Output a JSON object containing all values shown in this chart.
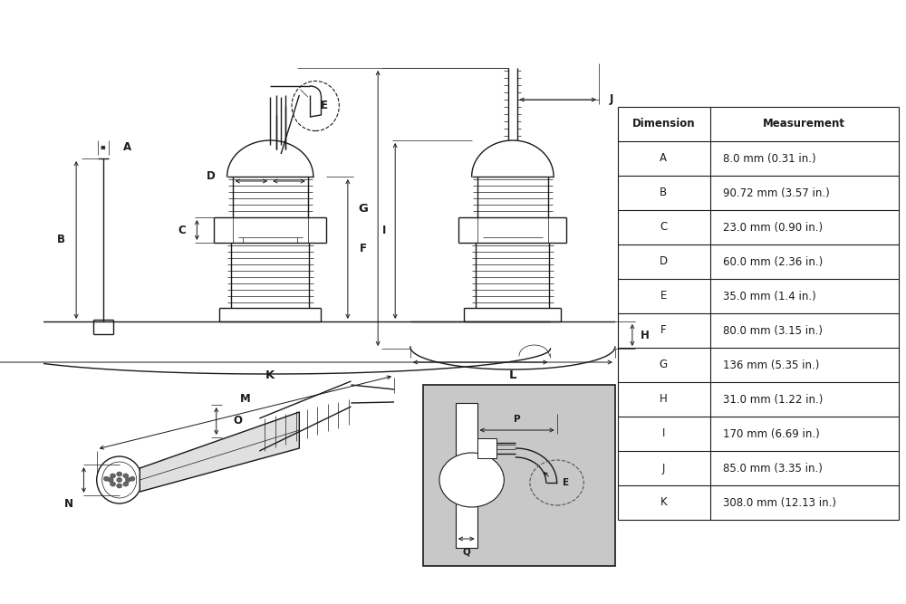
{
  "table_dimensions": [
    [
      "A",
      "8.0 mm (0.31 in.)"
    ],
    [
      "B",
      "90.72 mm (3.57 in.)"
    ],
    [
      "C",
      "23.0 mm (0.90 in.)"
    ],
    [
      "D",
      "60.0 mm (2.36 in.)"
    ],
    [
      "E",
      "35.0 mm (1.4 in.)"
    ],
    [
      "F",
      "80.0 mm (3.15 in.)"
    ],
    [
      "G",
      "136 mm (5.35 in.)"
    ],
    [
      "H",
      "31.0 mm (1.22 in.)"
    ],
    [
      "I",
      "170 mm (6.69 in.)"
    ],
    [
      "J",
      "85.0 mm (3.35 in.)"
    ],
    [
      "K",
      "308.0 mm (12.13 in.)"
    ]
  ],
  "bg_color": "#ffffff",
  "line_color": "#1a1a1a",
  "gray_bg": "#c8c8c8",
  "label_fontsize": 8.5,
  "table_fontsize": 8.5
}
